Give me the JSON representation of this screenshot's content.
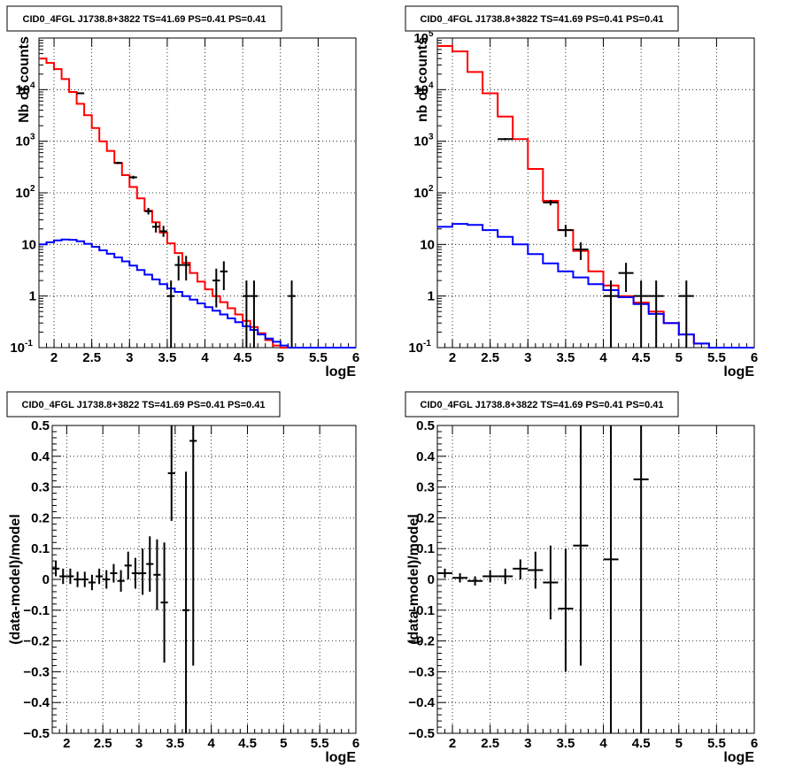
{
  "chart_data": [
    {
      "type": "line",
      "title": "CID0_4FGL J1738.8+3822 TS=41.69 PS=0.41 PS=0.41",
      "xlabel": "logE",
      "ylabel": "Nb of counts",
      "xlim": [
        1.8,
        6.0
      ],
      "ylim": [
        0.1,
        100000
      ],
      "log_y": true,
      "grid": true,
      "x_ticks": [
        "2",
        "2.5",
        "3",
        "3.5",
        "4",
        "4.5",
        "5",
        "5.5",
        "6"
      ],
      "y_ticks": [
        "10^-1",
        "1",
        "10",
        "10^2",
        "10^3",
        "10^4"
      ],
      "bin_edges": [
        1.8,
        1.9,
        2.0,
        2.1,
        2.2,
        2.3,
        2.4,
        2.5,
        2.6,
        2.7,
        2.8,
        2.9,
        3.0,
        3.1,
        3.2,
        3.3,
        3.4,
        3.5,
        3.6,
        3.7,
        3.8,
        3.9,
        4.0,
        4.1,
        4.2,
        4.3,
        4.4,
        4.5,
        4.6,
        4.7,
        4.8,
        4.9,
        5.0,
        5.1,
        5.2,
        5.3,
        5.4,
        5.5,
        5.6,
        5.7,
        5.8,
        5.9,
        6.0
      ],
      "series": [
        {
          "color": "#ff0000",
          "values": [
            40000,
            33000,
            25000,
            16000,
            9000,
            5300,
            3200,
            1800,
            1000,
            650,
            380,
            220,
            130,
            78,
            45,
            27,
            17,
            10.5,
            6.8,
            4.4,
            2.8,
            1.9,
            1.35,
            1.0,
            0.76,
            0.58,
            0.44,
            0.33,
            0.25,
            0.19,
            0.14,
            0.11,
            0.1,
            0.1,
            0.1,
            0.1,
            0.1,
            0.1,
            0.1,
            0.1,
            0.1,
            0.1
          ]
        },
        {
          "color": "#0000ff",
          "values": [
            10,
            11,
            12,
            12.5,
            12.3,
            11.5,
            10.3,
            9.0,
            7.7,
            6.6,
            5.6,
            4.7,
            3.9,
            3.2,
            2.6,
            2.1,
            1.7,
            1.4,
            1.2,
            1.0,
            0.85,
            0.72,
            0.61,
            0.52,
            0.44,
            0.37,
            0.31,
            0.26,
            0.22,
            0.18,
            0.15,
            0.13,
            0.11,
            0.1,
            0.1,
            0.1,
            0.1,
            0.1,
            0.1,
            0.1,
            0.1,
            0.1
          ]
        }
      ],
      "points": [
        {
          "x": 2.35,
          "y": 8500,
          "xerr": 0.05,
          "lo": 8200,
          "hi": 8800
        },
        {
          "x": 2.85,
          "y": 380,
          "xerr": 0.05,
          "lo": 360,
          "hi": 400
        },
        {
          "x": 3.05,
          "y": 200,
          "xerr": 0.05,
          "lo": 186,
          "hi": 214
        },
        {
          "x": 3.25,
          "y": 44,
          "xerr": 0.05,
          "lo": 38,
          "hi": 51
        },
        {
          "x": 3.35,
          "y": 22,
          "xerr": 0.05,
          "lo": 17,
          "hi": 27
        },
        {
          "x": 3.45,
          "y": 18,
          "xerr": 0.05,
          "lo": 14,
          "hi": 23
        },
        {
          "x": 3.55,
          "y": 1.0,
          "xerr": 0.05,
          "lo": 0.1,
          "hi": 2.0
        },
        {
          "x": 3.65,
          "y": 4.0,
          "xerr": 0.05,
          "lo": 2.0,
          "hi": 6.0
        },
        {
          "x": 3.75,
          "y": 4.0,
          "xerr": 0.05,
          "lo": 2.0,
          "hi": 6.0
        },
        {
          "x": 4.15,
          "y": 2.0,
          "xerr": 0.05,
          "lo": 0.6,
          "hi": 3.4
        },
        {
          "x": 4.25,
          "y": 3.0,
          "xerr": 0.05,
          "lo": 1.3,
          "hi": 4.7
        },
        {
          "x": 4.55,
          "y": 1.0,
          "xerr": 0.05,
          "lo": 0.1,
          "hi": 2.0
        },
        {
          "x": 4.65,
          "y": 1.0,
          "xerr": 0.05,
          "lo": 0.1,
          "hi": 2.0
        },
        {
          "x": 5.15,
          "y": 1.0,
          "xerr": 0.05,
          "lo": 0.1,
          "hi": 2.0
        }
      ]
    },
    {
      "type": "line",
      "title": "CID0_4FGL J1738.8+3822 TS=41.69 PS=0.41 PS=0.41",
      "xlabel": "logE",
      "ylabel": "nb of counts",
      "xlim": [
        1.8,
        6.0
      ],
      "ylim": [
        0.1,
        100000
      ],
      "log_y": true,
      "grid": true,
      "x_ticks": [
        "2",
        "2.5",
        "3",
        "3.5",
        "4",
        "4.5",
        "5",
        "5.5",
        "6"
      ],
      "y_ticks": [
        "10^-1",
        "1",
        "10",
        "10^2",
        "10^3",
        "10^4",
        "10^5"
      ],
      "bin_edges": [
        1.8,
        2.0,
        2.2,
        2.4,
        2.6,
        2.8,
        3.0,
        3.2,
        3.4,
        3.6,
        3.8,
        4.0,
        4.2,
        4.4,
        4.6,
        4.8,
        5.0,
        5.2,
        5.4,
        5.6,
        5.8,
        6.0
      ],
      "series": [
        {
          "color": "#ff0000",
          "values": [
            70000,
            55000,
            22000,
            8500,
            3000,
            1100,
            290,
            70,
            19,
            7.5,
            3.0,
            1.6,
            1.0,
            0.75,
            0.5,
            0.3,
            0.18,
            0.12,
            0.1,
            0.1,
            0.1
          ]
        },
        {
          "color": "#0000ff",
          "values": [
            22,
            25,
            24,
            19,
            14,
            10,
            6.5,
            4.3,
            3.0,
            2.3,
            1.7,
            1.3,
            0.95,
            0.7,
            0.45,
            0.3,
            0.18,
            0.12,
            0.1,
            0.1,
            0.1
          ]
        }
      ],
      "points": [
        {
          "x": 2.7,
          "y": 1100,
          "xerr": 0.1,
          "lo": 1050,
          "hi": 1150
        },
        {
          "x": 3.3,
          "y": 65,
          "xerr": 0.1,
          "lo": 57,
          "hi": 73
        },
        {
          "x": 3.5,
          "y": 19,
          "xerr": 0.1,
          "lo": 14,
          "hi": 24
        },
        {
          "x": 3.7,
          "y": 8,
          "xerr": 0.1,
          "lo": 5,
          "hi": 11
        },
        {
          "x": 4.1,
          "y": 1.0,
          "xerr": 0.1,
          "lo": 0.1,
          "hi": 2.0
        },
        {
          "x": 4.3,
          "y": 2.8,
          "xerr": 0.1,
          "lo": 1.2,
          "hi": 4.4
        },
        {
          "x": 4.5,
          "y": 1.0,
          "xerr": 0.1,
          "lo": 0.1,
          "hi": 2.0
        },
        {
          "x": 4.7,
          "y": 1.0,
          "xerr": 0.1,
          "lo": 0.1,
          "hi": 2.0
        },
        {
          "x": 5.1,
          "y": 1.0,
          "xerr": 0.1,
          "lo": 0.1,
          "hi": 2.0
        }
      ]
    },
    {
      "type": "scatter",
      "title": "CID0_4FGL J1738.8+3822 TS=41.69 PS=0.41 PS=0.41",
      "xlabel": "logE",
      "ylabel": "(data-model)/model",
      "xlim": [
        1.8,
        6.0
      ],
      "ylim": [
        -0.5,
        0.5
      ],
      "log_y": false,
      "grid": true,
      "x_ticks": [
        "2",
        "2.5",
        "3",
        "3.5",
        "4",
        "4.5",
        "5",
        "5.5",
        "6"
      ],
      "y_ticks": [
        "-0.5",
        "-0.4",
        "-0.3",
        "-0.2",
        "-0.1",
        "0",
        "0.1",
        "0.2",
        "0.3",
        "0.4",
        "0.5"
      ],
      "points": [
        {
          "x": 1.85,
          "y": 0.035,
          "xerr": 0.05,
          "lo": 0.01,
          "hi": 0.06
        },
        {
          "x": 1.95,
          "y": 0.01,
          "xerr": 0.05,
          "lo": -0.015,
          "hi": 0.035
        },
        {
          "x": 2.05,
          "y": 0.01,
          "xerr": 0.05,
          "lo": -0.015,
          "hi": 0.035
        },
        {
          "x": 2.15,
          "y": 0.0,
          "xerr": 0.05,
          "lo": -0.025,
          "hi": 0.025
        },
        {
          "x": 2.25,
          "y": 0.0,
          "xerr": 0.05,
          "lo": -0.025,
          "hi": 0.025
        },
        {
          "x": 2.35,
          "y": -0.01,
          "xerr": 0.05,
          "lo": -0.035,
          "hi": 0.015
        },
        {
          "x": 2.45,
          "y": 0.01,
          "xerr": 0.05,
          "lo": -0.015,
          "hi": 0.035
        },
        {
          "x": 2.55,
          "y": 0.0,
          "xerr": 0.05,
          "lo": -0.03,
          "hi": 0.03
        },
        {
          "x": 2.65,
          "y": 0.02,
          "xerr": 0.05,
          "lo": -0.01,
          "hi": 0.05
        },
        {
          "x": 2.75,
          "y": -0.005,
          "xerr": 0.05,
          "lo": -0.04,
          "hi": 0.03
        },
        {
          "x": 2.85,
          "y": 0.045,
          "xerr": 0.05,
          "lo": 0.0,
          "hi": 0.09
        },
        {
          "x": 2.95,
          "y": 0.02,
          "xerr": 0.05,
          "lo": -0.03,
          "hi": 0.07
        },
        {
          "x": 3.05,
          "y": 0.02,
          "xerr": 0.05,
          "lo": -0.05,
          "hi": 0.1
        },
        {
          "x": 3.15,
          "y": 0.05,
          "xerr": 0.05,
          "lo": -0.04,
          "hi": 0.14
        },
        {
          "x": 3.25,
          "y": 0.015,
          "xerr": 0.05,
          "lo": -0.1,
          "hi": 0.13
        },
        {
          "x": 3.35,
          "y": -0.075,
          "xerr": 0.05,
          "lo": -0.27,
          "hi": 0.12
        },
        {
          "x": 3.45,
          "y": 0.345,
          "xerr": 0.05,
          "lo": 0.19,
          "hi": 0.5
        },
        {
          "x": 3.65,
          "y": -0.1,
          "xerr": 0.05,
          "lo": -0.5,
          "hi": 0.35
        },
        {
          "x": 3.75,
          "y": 0.45,
          "xerr": 0.05,
          "lo": -0.28,
          "hi": 0.5
        }
      ]
    },
    {
      "type": "scatter",
      "title": "CID0_4FGL J1738.8+3822 TS=41.69 PS=0.41 PS=0.41",
      "xlabel": "logE",
      "ylabel": "(data-model)/model",
      "xlim": [
        1.8,
        6.0
      ],
      "ylim": [
        -0.5,
        0.5
      ],
      "log_y": false,
      "grid": true,
      "x_ticks": [
        "2",
        "2.5",
        "3",
        "3.5",
        "4",
        "4.5",
        "5",
        "5.5",
        "6"
      ],
      "y_ticks": [
        "-0.5",
        "-0.4",
        "-0.3",
        "-0.2",
        "-0.1",
        "0",
        "0.1",
        "0.2",
        "0.3",
        "0.4",
        "0.5"
      ],
      "points": [
        {
          "x": 1.9,
          "y": 0.02,
          "xerr": 0.1,
          "lo": 0.005,
          "hi": 0.035
        },
        {
          "x": 2.1,
          "y": 0.005,
          "xerr": 0.1,
          "lo": -0.01,
          "hi": 0.02
        },
        {
          "x": 2.3,
          "y": -0.005,
          "xerr": 0.1,
          "lo": -0.02,
          "hi": 0.01
        },
        {
          "x": 2.5,
          "y": 0.01,
          "xerr": 0.1,
          "lo": -0.01,
          "hi": 0.03
        },
        {
          "x": 2.7,
          "y": 0.01,
          "xerr": 0.1,
          "lo": -0.015,
          "hi": 0.035
        },
        {
          "x": 2.9,
          "y": 0.035,
          "xerr": 0.1,
          "lo": 0.0,
          "hi": 0.065
        },
        {
          "x": 3.1,
          "y": 0.03,
          "xerr": 0.1,
          "lo": -0.03,
          "hi": 0.09
        },
        {
          "x": 3.3,
          "y": -0.01,
          "xerr": 0.1,
          "lo": -0.13,
          "hi": 0.11
        },
        {
          "x": 3.5,
          "y": -0.095,
          "xerr": 0.1,
          "lo": -0.3,
          "hi": 0.1
        },
        {
          "x": 3.7,
          "y": 0.11,
          "xerr": 0.1,
          "lo": -0.28,
          "hi": 0.5
        },
        {
          "x": 4.1,
          "y": 0.065,
          "xerr": 0.1,
          "lo": -0.5,
          "hi": 0.5
        },
        {
          "x": 4.5,
          "y": 0.325,
          "xerr": 0.1,
          "lo": -0.5,
          "hi": 0.5
        }
      ]
    }
  ]
}
